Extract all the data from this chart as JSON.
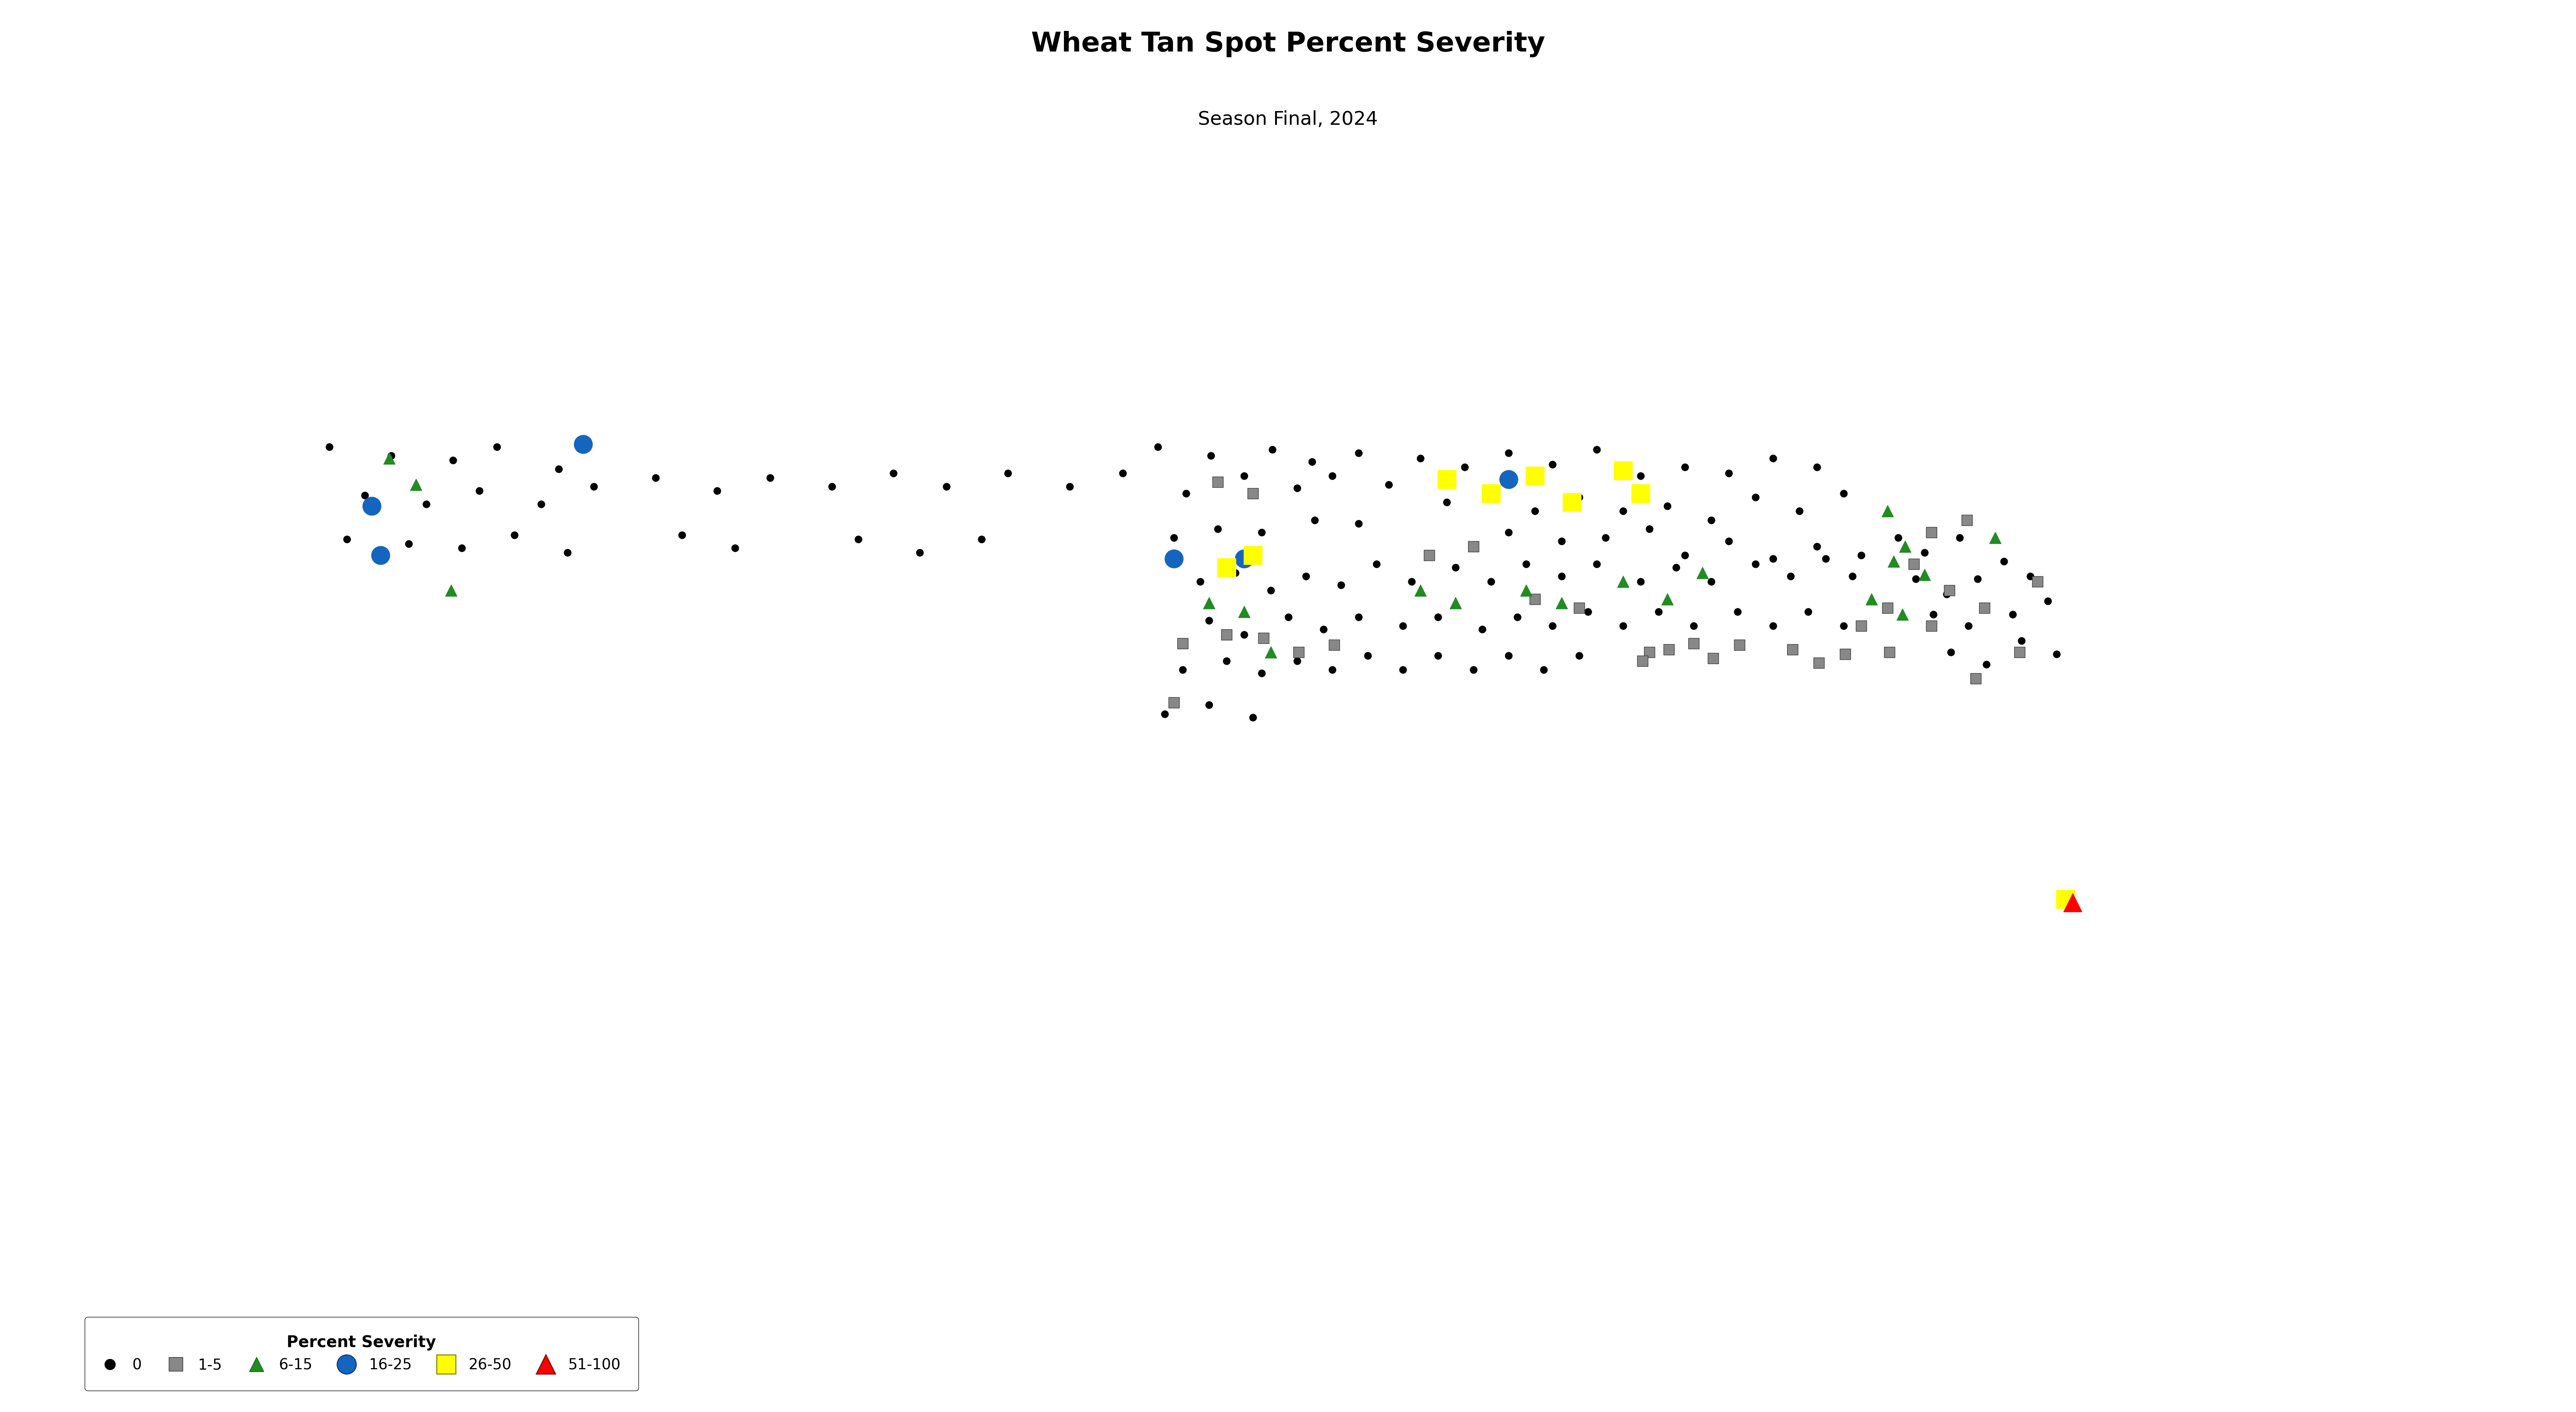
{
  "title": "Wheat Tan Spot Percent Severity",
  "subtitle": "Season Final, 2024",
  "title_fontsize": 52,
  "subtitle_fontsize": 36,
  "legend_title": "Percent Severity",
  "legend_title_fontsize": 30,
  "legend_fontsize": 28,
  "background_color": "#ffffff",
  "extent": [
    -117.5,
    -89.0,
    42.5,
    50.6
  ],
  "points_severity_0": [
    [
      -114.2,
      48.85
    ],
    [
      -113.5,
      48.75
    ],
    [
      -112.8,
      48.7
    ],
    [
      -112.3,
      48.85
    ],
    [
      -111.6,
      48.6
    ],
    [
      -113.8,
      48.3
    ],
    [
      -113.1,
      48.2
    ],
    [
      -112.5,
      48.35
    ],
    [
      -111.8,
      48.2
    ],
    [
      -111.2,
      48.4
    ],
    [
      -114.0,
      47.8
    ],
    [
      -113.3,
      47.75
    ],
    [
      -112.7,
      47.7
    ],
    [
      -112.1,
      47.85
    ],
    [
      -111.5,
      47.65
    ],
    [
      -110.5,
      48.5
    ],
    [
      -109.8,
      48.35
    ],
    [
      -109.2,
      48.5
    ],
    [
      -110.2,
      47.85
    ],
    [
      -109.6,
      47.7
    ],
    [
      -108.5,
      48.4
    ],
    [
      -107.8,
      48.55
    ],
    [
      -107.2,
      48.4
    ],
    [
      -106.5,
      48.55
    ],
    [
      -105.8,
      48.4
    ],
    [
      -105.2,
      48.55
    ],
    [
      -108.2,
      47.8
    ],
    [
      -107.5,
      47.65
    ],
    [
      -106.8,
      47.8
    ],
    [
      -104.8,
      48.85
    ],
    [
      -104.2,
      48.75
    ],
    [
      -103.5,
      48.82
    ],
    [
      -103.05,
      48.68
    ],
    [
      -102.52,
      48.78
    ],
    [
      -101.82,
      48.72
    ],
    [
      -101.32,
      48.62
    ],
    [
      -100.82,
      48.78
    ],
    [
      -100.32,
      48.65
    ],
    [
      -99.82,
      48.82
    ],
    [
      -99.32,
      48.52
    ],
    [
      -98.82,
      48.62
    ],
    [
      -98.32,
      48.55
    ],
    [
      -97.82,
      48.72
    ],
    [
      -97.32,
      48.62
    ],
    [
      -104.48,
      48.32
    ],
    [
      -103.82,
      48.52
    ],
    [
      -103.22,
      48.38
    ],
    [
      -102.82,
      48.52
    ],
    [
      -102.18,
      48.42
    ],
    [
      -101.52,
      48.22
    ],
    [
      -101.02,
      48.32
    ],
    [
      -100.52,
      48.12
    ],
    [
      -100.02,
      48.28
    ],
    [
      -99.52,
      48.12
    ],
    [
      -99.02,
      48.18
    ],
    [
      -98.52,
      48.02
    ],
    [
      -98.02,
      48.28
    ],
    [
      -97.52,
      48.12
    ],
    [
      -97.02,
      48.32
    ],
    [
      -104.62,
      47.82
    ],
    [
      -104.12,
      47.92
    ],
    [
      -103.62,
      47.88
    ],
    [
      -103.02,
      48.02
    ],
    [
      -102.52,
      47.98
    ],
    [
      -101.22,
      47.72
    ],
    [
      -100.82,
      47.88
    ],
    [
      -100.22,
      47.78
    ],
    [
      -99.72,
      47.82
    ],
    [
      -99.22,
      47.92
    ],
    [
      -98.82,
      47.62
    ],
    [
      -98.32,
      47.78
    ],
    [
      -97.82,
      47.58
    ],
    [
      -97.32,
      47.72
    ],
    [
      -96.82,
      47.62
    ],
    [
      -104.32,
      47.32
    ],
    [
      -103.92,
      47.42
    ],
    [
      -103.52,
      47.22
    ],
    [
      -103.12,
      47.38
    ],
    [
      -102.72,
      47.28
    ],
    [
      -102.32,
      47.52
    ],
    [
      -101.92,
      47.32
    ],
    [
      -101.42,
      47.48
    ],
    [
      -101.02,
      47.32
    ],
    [
      -100.62,
      47.52
    ],
    [
      -100.22,
      47.38
    ],
    [
      -99.82,
      47.52
    ],
    [
      -99.32,
      47.32
    ],
    [
      -98.92,
      47.48
    ],
    [
      -98.52,
      47.32
    ],
    [
      -98.02,
      47.52
    ],
    [
      -97.62,
      47.38
    ],
    [
      -97.22,
      47.58
    ],
    [
      -96.92,
      47.38
    ],
    [
      -104.22,
      46.88
    ],
    [
      -103.82,
      46.72
    ],
    [
      -103.32,
      46.92
    ],
    [
      -102.92,
      46.78
    ],
    [
      -102.52,
      46.92
    ],
    [
      -102.02,
      46.82
    ],
    [
      -101.62,
      46.92
    ],
    [
      -101.12,
      46.78
    ],
    [
      -100.72,
      46.92
    ],
    [
      -100.32,
      46.82
    ],
    [
      -99.92,
      46.98
    ],
    [
      -99.52,
      46.82
    ],
    [
      -99.12,
      46.98
    ],
    [
      -98.72,
      46.82
    ],
    [
      -98.22,
      46.98
    ],
    [
      -97.82,
      46.82
    ],
    [
      -97.42,
      46.98
    ],
    [
      -97.02,
      46.82
    ],
    [
      -104.52,
      46.32
    ],
    [
      -104.02,
      46.42
    ],
    [
      -103.62,
      46.28
    ],
    [
      -103.22,
      46.42
    ],
    [
      -102.82,
      46.32
    ],
    [
      -102.42,
      46.48
    ],
    [
      -102.02,
      46.32
    ],
    [
      -101.62,
      46.48
    ],
    [
      -101.22,
      46.32
    ],
    [
      -100.82,
      46.48
    ],
    [
      -100.42,
      46.32
    ],
    [
      -100.02,
      46.48
    ],
    [
      -104.72,
      45.82
    ],
    [
      -104.22,
      45.92
    ],
    [
      -103.72,
      45.78
    ],
    [
      -96.4,
      47.82
    ],
    [
      -96.1,
      47.65
    ],
    [
      -95.7,
      47.82
    ],
    [
      -96.2,
      47.35
    ],
    [
      -95.85,
      47.18
    ],
    [
      -95.5,
      47.35
    ],
    [
      -96.0,
      46.95
    ],
    [
      -95.6,
      46.82
    ],
    [
      -95.2,
      47.55
    ],
    [
      -94.9,
      47.38
    ],
    [
      -95.1,
      46.95
    ],
    [
      -94.7,
      47.1
    ],
    [
      -95.8,
      46.52
    ],
    [
      -95.4,
      46.38
    ],
    [
      -95.0,
      46.65
    ],
    [
      -94.6,
      46.5
    ]
  ],
  "points_severity_1_5": [
    [
      -104.12,
      48.45
    ],
    [
      -103.72,
      48.32
    ],
    [
      -101.72,
      47.62
    ],
    [
      -101.22,
      47.72
    ],
    [
      -100.52,
      47.12
    ],
    [
      -100.02,
      47.02
    ],
    [
      -99.22,
      46.52
    ],
    [
      -98.72,
      46.62
    ],
    [
      -104.52,
      46.62
    ],
    [
      -104.02,
      46.72
    ],
    [
      -104.62,
      45.95
    ],
    [
      -96.52,
      47.02
    ],
    [
      -96.02,
      46.82
    ],
    [
      -95.82,
      47.22
    ],
    [
      -95.42,
      47.02
    ],
    [
      -96.22,
      47.52
    ],
    [
      -95.02,
      46.52
    ],
    [
      -95.52,
      46.22
    ],
    [
      -96.82,
      46.82
    ],
    [
      -95.62,
      48.02
    ],
    [
      -96.02,
      47.88
    ],
    [
      -94.82,
      47.32
    ],
    [
      -96.5,
      46.52
    ],
    [
      -97.0,
      46.5
    ],
    [
      -97.3,
      46.4
    ],
    [
      -97.6,
      46.55
    ],
    [
      -98.2,
      46.6
    ],
    [
      -98.5,
      46.45
    ],
    [
      -99.0,
      46.55
    ],
    [
      -99.3,
      46.42
    ],
    [
      -102.8,
      46.6
    ],
    [
      -103.2,
      46.52
    ],
    [
      -103.6,
      46.68
    ]
  ],
  "points_severity_6_15": [
    [
      -113.52,
      48.72
    ],
    [
      -113.22,
      48.42
    ],
    [
      -112.82,
      47.22
    ],
    [
      -104.22,
      47.08
    ],
    [
      -103.82,
      46.98
    ],
    [
      -101.82,
      47.22
    ],
    [
      -101.42,
      47.08
    ],
    [
      -100.62,
      47.22
    ],
    [
      -100.22,
      47.08
    ],
    [
      -99.52,
      47.32
    ],
    [
      -99.02,
      47.12
    ],
    [
      -98.62,
      47.42
    ],
    [
      -96.52,
      48.12
    ],
    [
      -96.32,
      47.72
    ],
    [
      -103.52,
      46.52
    ],
    [
      -96.45,
      47.55
    ],
    [
      -96.1,
      47.4
    ],
    [
      -96.7,
      47.12
    ],
    [
      -96.35,
      46.95
    ],
    [
      -95.3,
      47.82
    ]
  ],
  "points_severity_16_25": [
    [
      -111.32,
      48.88
    ],
    [
      -113.72,
      48.18
    ],
    [
      -113.62,
      47.62
    ],
    [
      -100.82,
      48.48
    ],
    [
      -104.62,
      47.58
    ],
    [
      -103.82,
      47.58
    ]
  ],
  "points_severity_26_50": [
    [
      -103.72,
      47.62
    ],
    [
      -104.02,
      47.48
    ],
    [
      -101.52,
      48.48
    ],
    [
      -101.02,
      48.32
    ],
    [
      -100.52,
      48.52
    ],
    [
      -99.52,
      48.58
    ],
    [
      -99.32,
      48.32
    ],
    [
      -100.1,
      48.22
    ],
    [
      -94.5,
      43.72
    ]
  ],
  "points_severity_51_100": [
    [
      -94.42,
      43.68
    ]
  ]
}
